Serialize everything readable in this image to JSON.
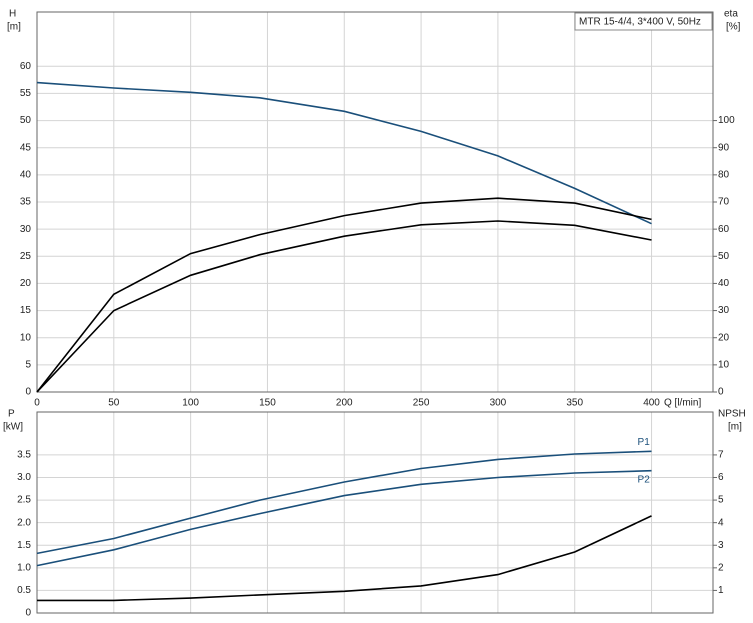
{
  "chart_data": [
    {
      "type": "line",
      "title": "MTR 15-4/4, 3*400 V, 50Hz",
      "y_label": "H",
      "y_unit": "[m]",
      "y2_label": "eta",
      "y2_unit": "[%]",
      "x_label": "Q [l/min]",
      "x": [
        0,
        50,
        100,
        145,
        200,
        250,
        300,
        350,
        400
      ],
      "xlim": [
        0,
        440
      ],
      "xticks": [
        0,
        50,
        100,
        150,
        200,
        250,
        300,
        350,
        400
      ],
      "ylim": [
        0,
        70
      ],
      "yticks": [
        0,
        5,
        10,
        15,
        20,
        25,
        30,
        35,
        40,
        45,
        50,
        55,
        60
      ],
      "y2lim": [
        0,
        140
      ],
      "y2ticks": [
        0,
        10,
        20,
        30,
        40,
        50,
        60,
        70,
        80,
        90,
        100
      ],
      "grid": true,
      "series": [
        {
          "color": "#1a4f7a",
          "values": [
            57,
            56,
            55.2,
            54.2,
            51.7,
            48,
            43.5,
            37.5,
            31
          ]
        },
        {
          "color": "#000000",
          "axis": "y2",
          "values": [
            0,
            36,
            51,
            58,
            65,
            69.6,
            71.4,
            69.6,
            63.6
          ]
        },
        {
          "color": "#000000",
          "axis": "y2",
          "values": [
            0,
            30,
            43,
            50.6,
            57.4,
            61.6,
            63,
            61.4,
            56
          ]
        }
      ]
    },
    {
      "type": "line",
      "y_label": "P",
      "y_unit": "[kW]",
      "y2_label": "NPSH",
      "y2_unit": "[m]",
      "x": [
        0,
        50,
        100,
        145,
        200,
        250,
        300,
        350,
        400
      ],
      "xlim": [
        0,
        440
      ],
      "xticks": [
        0,
        50,
        100,
        150,
        200,
        250,
        300,
        350,
        400
      ],
      "ylim": [
        0,
        4.45
      ],
      "yticks": [
        0,
        0.5,
        {
          "value": 1,
          "label": "1.0"
        },
        1.5,
        {
          "value": 2,
          "label": "2.0"
        },
        2.5,
        {
          "value": 3,
          "label": "3.0"
        },
        3.5
      ],
      "y2lim": [
        0,
        8.9
      ],
      "y2ticks": [
        1,
        2,
        3,
        4,
        5,
        6,
        7
      ],
      "grid": true,
      "series": [
        {
          "name": "P1",
          "color": "#1a4f7a",
          "values": [
            1.32,
            1.65,
            2.1,
            2.5,
            2.9,
            3.2,
            3.4,
            3.52,
            3.58
          ]
        },
        {
          "name": "P2",
          "color": "#1a4f7a",
          "values": [
            1.05,
            1.4,
            1.85,
            2.2,
            2.6,
            2.85,
            3.0,
            3.1,
            3.15
          ]
        },
        {
          "color": "#000000",
          "axis": "y2",
          "values": [
            0.56,
            0.56,
            0.66,
            0.8,
            0.96,
            1.2,
            1.7,
            2.7,
            4.3
          ]
        }
      ]
    }
  ]
}
